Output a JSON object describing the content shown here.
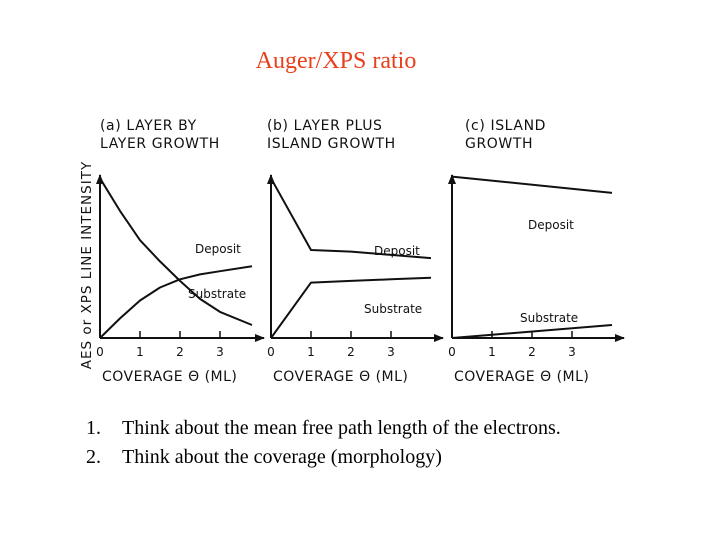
{
  "title": "Auger/XPS ratio",
  "chart_data": {
    "type": "line",
    "ylabel": "AES or XPS LINE INTENSITY",
    "panels": [
      {
        "title_lines": [
          "(a) LAYER BY",
          "LAYER GROWTH"
        ],
        "xlabel": "COVERAGE Θ (ML)",
        "xticks": [
          "0",
          "1",
          "2",
          "3"
        ],
        "xlim": [
          0,
          3.8
        ],
        "ylim": [
          0,
          1
        ],
        "series": [
          {
            "name": "Deposit",
            "x": [
              0,
              0.5,
              1,
              1.5,
              2,
              2.5,
              3,
              3.8
            ],
            "y": [
              0.0,
              0.12,
              0.23,
              0.31,
              0.36,
              0.39,
              0.41,
              0.44
            ]
          },
          {
            "name": "Substrate",
            "x": [
              0,
              0.5,
              1,
              1.5,
              2,
              2.5,
              3,
              3.8
            ],
            "y": [
              0.98,
              0.78,
              0.6,
              0.47,
              0.35,
              0.24,
              0.16,
              0.08
            ]
          }
        ]
      },
      {
        "title_lines": [
          "(b) LAYER PLUS",
          "ISLAND GROWTH"
        ],
        "xlabel": "COVERAGE Θ (ML)",
        "xticks": [
          "0",
          "1",
          "2",
          "3"
        ],
        "xlim": [
          0,
          4
        ],
        "ylim": [
          0,
          1
        ],
        "series": [
          {
            "name": "Deposit",
            "x": [
              0,
              1,
              2,
              3,
              4
            ],
            "y": [
              0.98,
              0.54,
              0.53,
              0.51,
              0.49
            ]
          },
          {
            "name": "Substrate",
            "x": [
              0,
              1,
              2,
              3,
              4
            ],
            "y": [
              0.0,
              0.34,
              0.35,
              0.36,
              0.37
            ]
          }
        ]
      },
      {
        "title_lines": [
          "(c) ISLAND",
          "GROWTH"
        ],
        "xlabel": "COVERAGE Θ (ML)",
        "xticks": [
          "0",
          "1",
          "2",
          "3"
        ],
        "xlim": [
          0,
          4
        ],
        "ylim": [
          0,
          1
        ],
        "series": [
          {
            "name": "Deposit",
            "x": [
              0,
              4
            ],
            "y": [
              0.99,
              0.89
            ]
          },
          {
            "name": "Substrate",
            "x": [
              0,
              4
            ],
            "y": [
              0.0,
              0.08
            ]
          }
        ]
      }
    ]
  },
  "notes": [
    {
      "num": "1.",
      "text": "Think about the mean free path length of the electrons."
    },
    {
      "num": "2.",
      "text": "Think about the coverage (morphology)"
    }
  ]
}
